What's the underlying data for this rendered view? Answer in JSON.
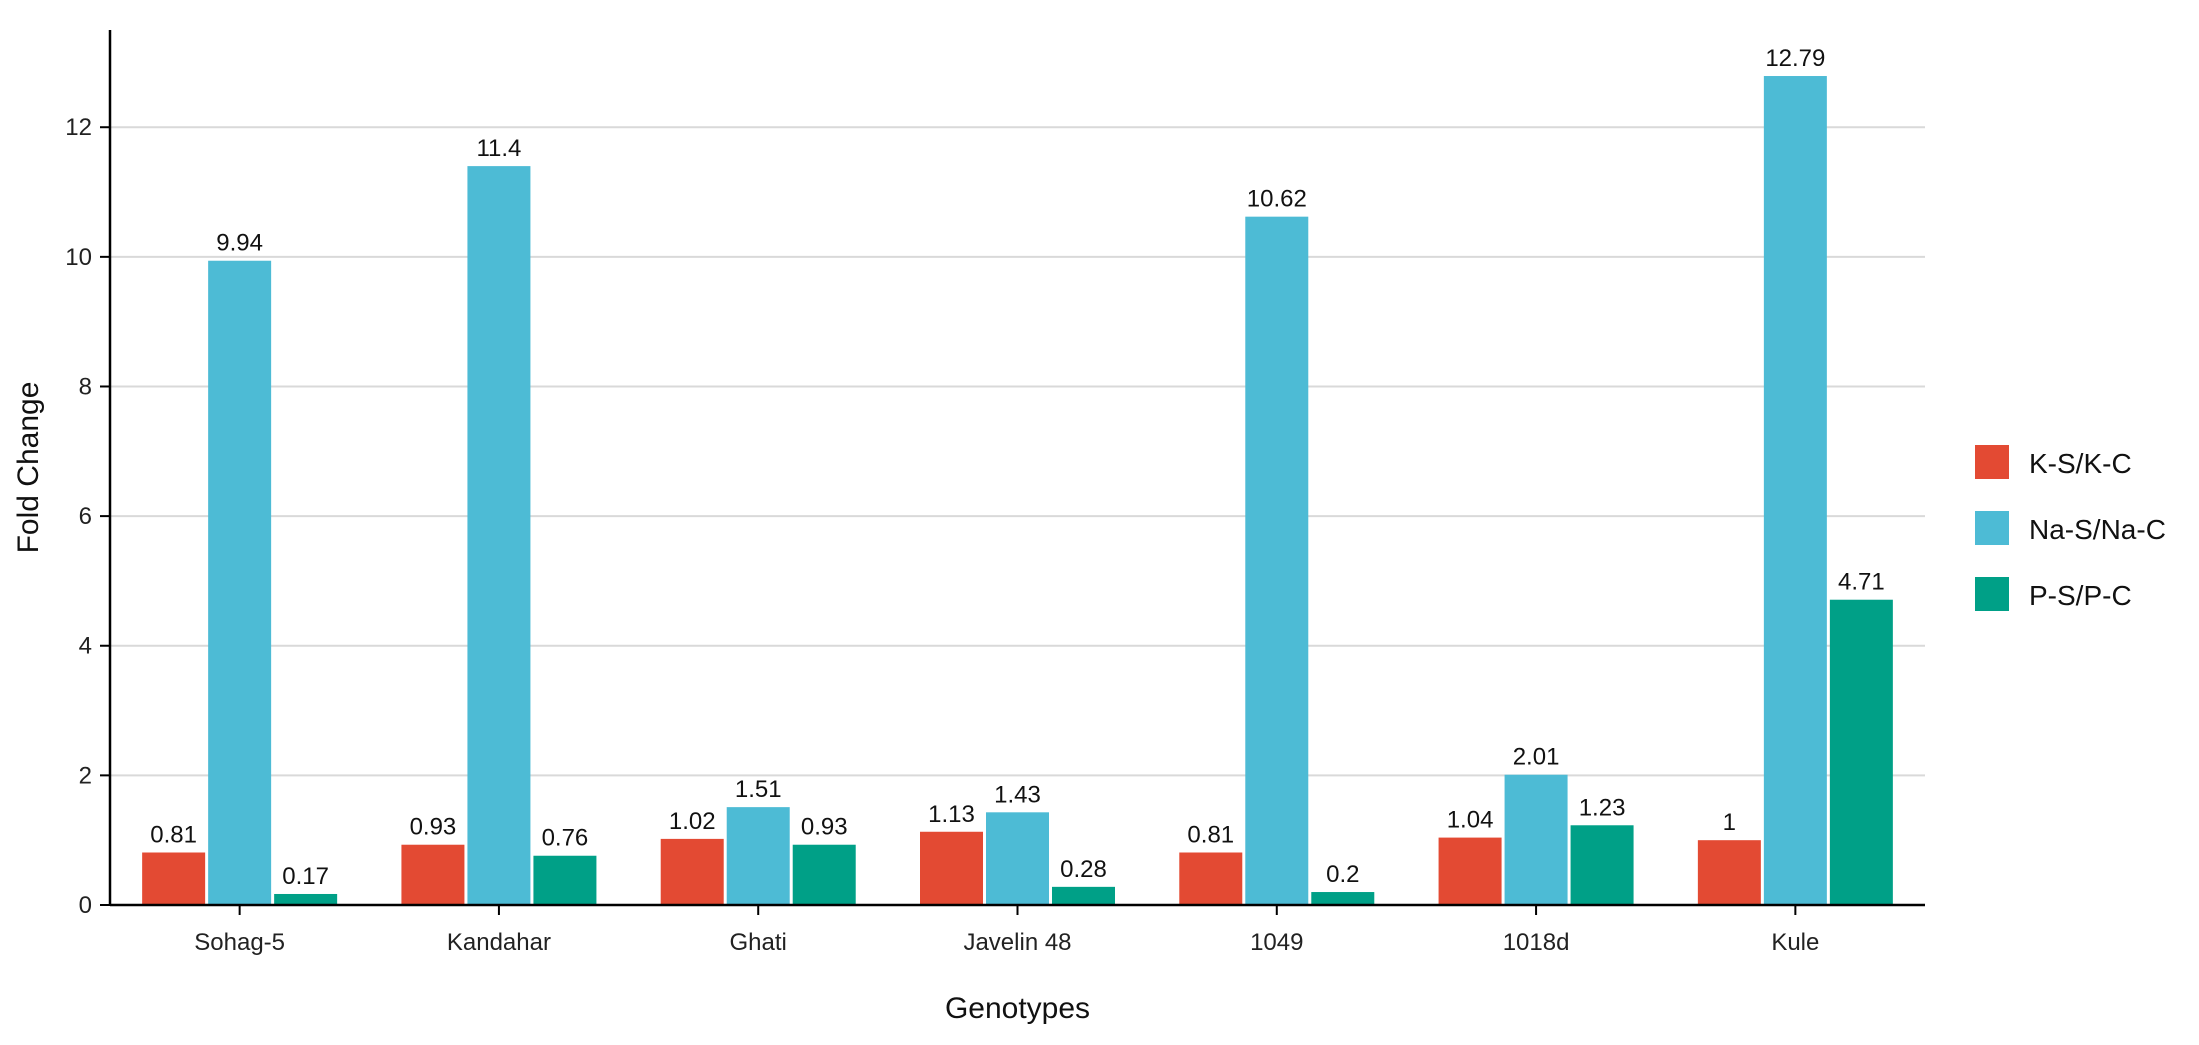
{
  "chart_data": {
    "type": "bar",
    "title": "",
    "xlabel": "Genotypes",
    "ylabel": "Fold Change",
    "categories": [
      "Sohag-5",
      "Kandahar",
      "Ghati",
      "Javelin 48",
      "1049",
      "1018d",
      "Kule"
    ],
    "series": [
      {
        "name": "K-S/K-C",
        "color": "#E34A33",
        "values": [
          0.81,
          0.93,
          1.02,
          1.13,
          0.81,
          1.04,
          1
        ],
        "labels": [
          "0.81",
          "0.93",
          "1.02",
          "1.13",
          "0.81",
          "1.04",
          "1"
        ]
      },
      {
        "name": "Na-S/Na-C",
        "color": "#4DBBD5",
        "values": [
          9.94,
          11.4,
          1.51,
          1.43,
          10.62,
          2.01,
          12.79
        ],
        "labels": [
          "9.94",
          "11.4",
          "1.51",
          "1.43",
          "10.62",
          "2.01",
          "12.79"
        ]
      },
      {
        "name": "P-S/P-C",
        "color": "#00A087",
        "values": [
          0.17,
          0.76,
          0.93,
          0.28,
          0.2,
          1.23,
          4.71
        ],
        "labels": [
          "0.17",
          "0.76",
          "0.93",
          "0.28",
          "0.2",
          "1.23",
          "4.71"
        ]
      }
    ],
    "ylim": [
      0,
      13.5
    ],
    "yticks": [
      0,
      2,
      4,
      6,
      8,
      10,
      12
    ],
    "ytick_labels": [
      "0",
      "2",
      "4",
      "6",
      "8",
      "10",
      "12"
    ],
    "grid": true,
    "legend_position": "right"
  }
}
